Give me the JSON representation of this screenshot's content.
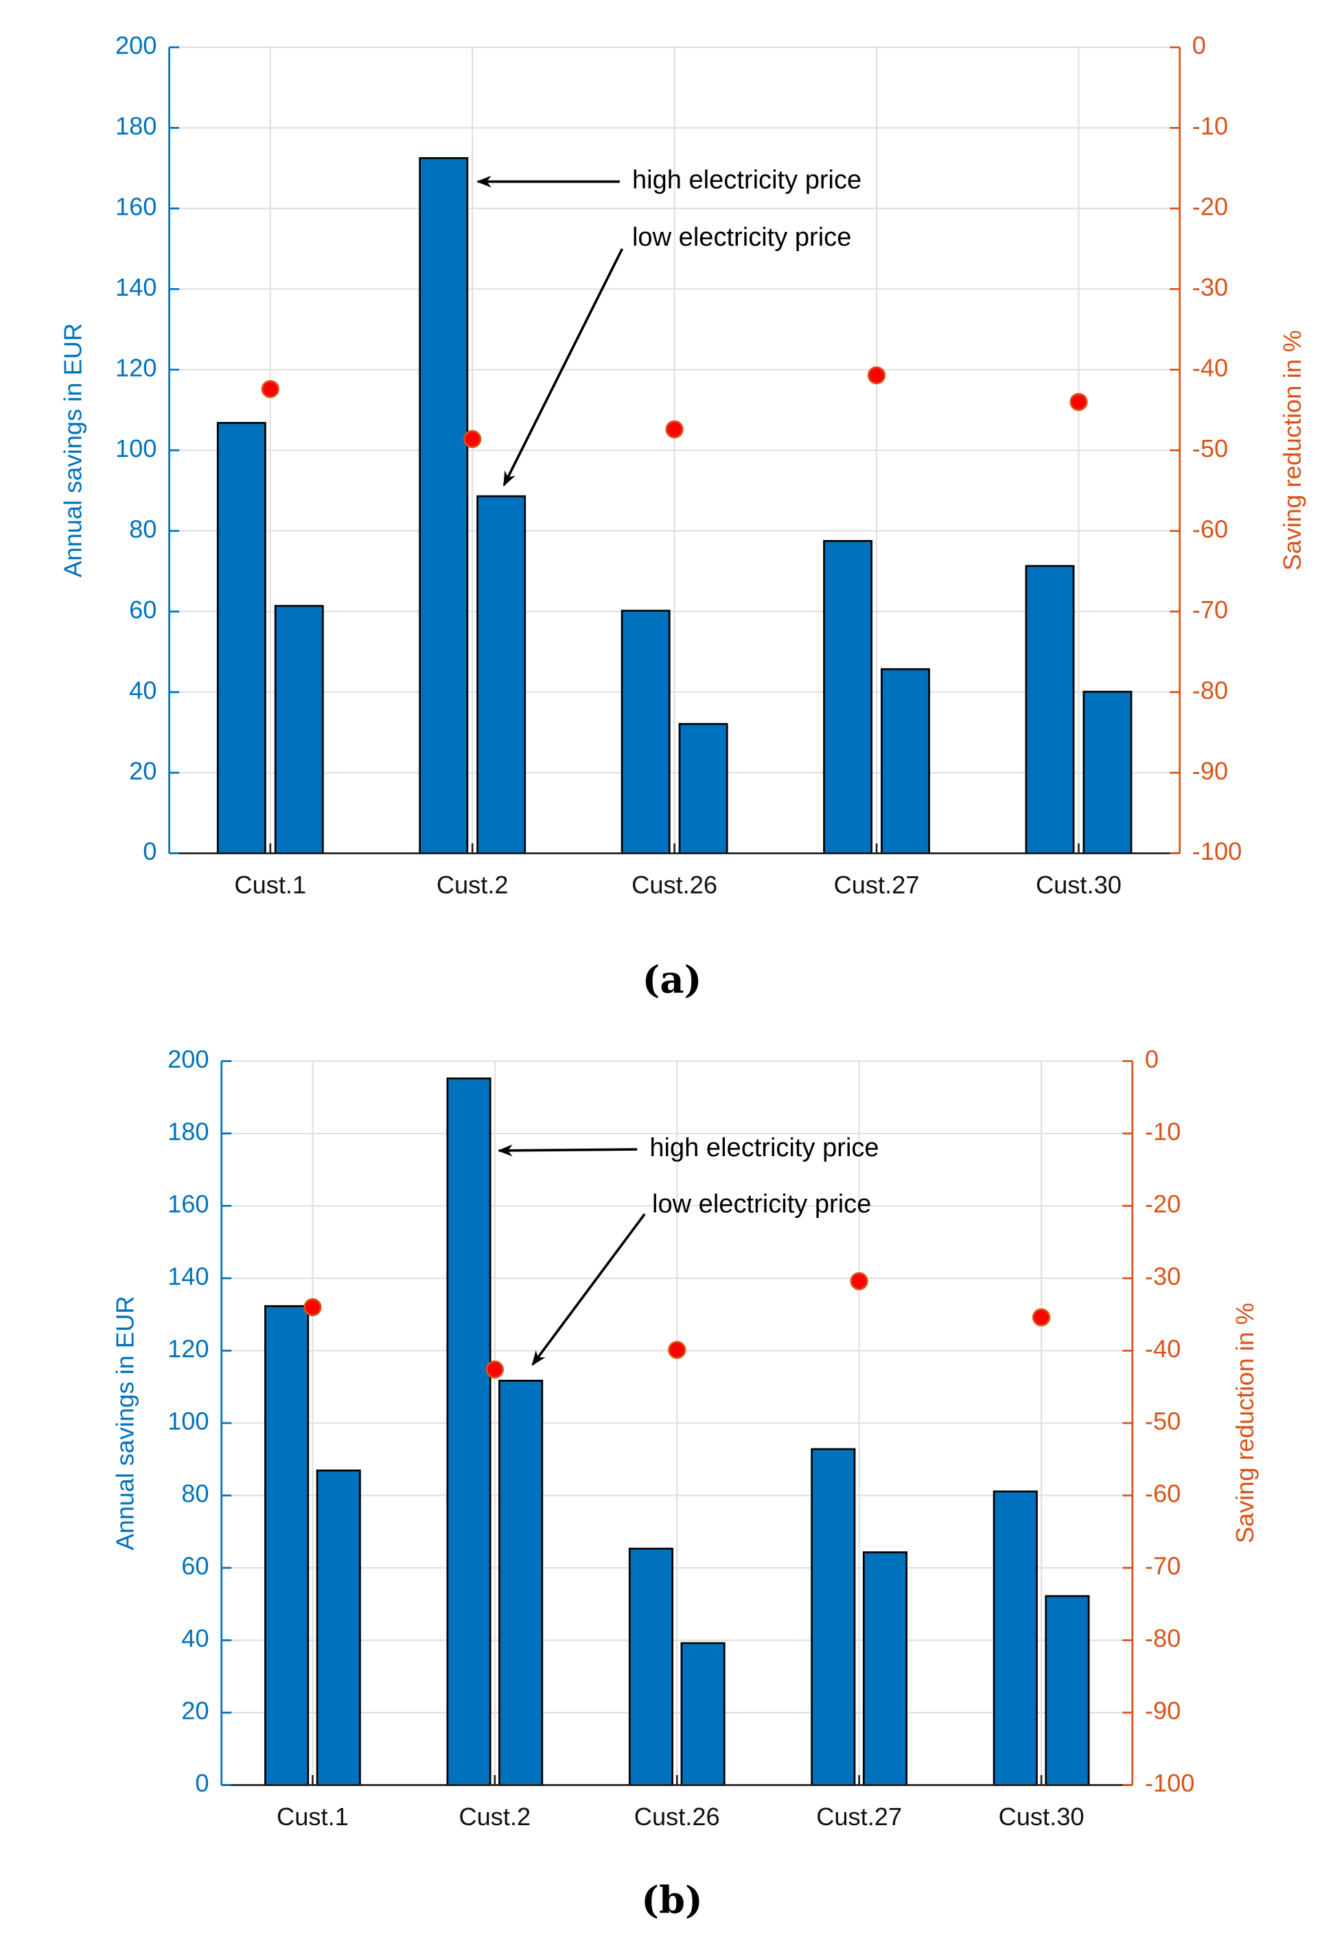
{
  "chart_data": [
    {
      "type": "bar",
      "caption": "(a)",
      "categories": [
        "Cust.1",
        "Cust.2",
        "Cust.26",
        "Cust.27",
        "Cust.30"
      ],
      "series": [
        {
          "color": "#0072bd",
          "values": [
            106.8,
            172.5,
            60.2,
            77.5,
            71.3
          ]
        },
        {
          "color": "#0072bd",
          "values": [
            61.4,
            88.6,
            32.1,
            45.7,
            40.1
          ]
        },
        {
          "type": "scatter",
          "axis": "y2",
          "color": "#ff0000",
          "values": [
            -42.4,
            -48.6,
            -47.4,
            -40.7,
            -44.0
          ]
        }
      ],
      "ylabel": "Annual savings in EUR",
      "y2label": "Saving reduction in %",
      "ylim": [
        0,
        200
      ],
      "yticks": [
        0,
        20,
        40,
        60,
        80,
        100,
        120,
        140,
        160,
        180,
        200
      ],
      "y2lim": [
        -100,
        0
      ],
      "y2ticks": [
        0,
        -10,
        -20,
        -30,
        -40,
        -50,
        -60,
        -70,
        -80,
        -90,
        -100
      ],
      "grid": true,
      "annotations": [
        "high electricity price",
        "low electricity price"
      ]
    },
    {
      "type": "bar",
      "caption": "(b)",
      "categories": [
        "Cust.1",
        "Cust.2",
        "Cust.26",
        "Cust.27",
        "Cust.30"
      ],
      "series": [
        {
          "color": "#0072bd",
          "values": [
            132.3,
            195.2,
            65.3,
            92.8,
            81.1
          ]
        },
        {
          "color": "#0072bd",
          "values": [
            86.9,
            111.7,
            39.2,
            64.3,
            52.2
          ]
        },
        {
          "type": "scatter",
          "axis": "y2",
          "color": "#ff0000",
          "values": [
            -34.0,
            -42.6,
            -39.9,
            -30.4,
            -35.4
          ]
        }
      ],
      "ylabel": "Annual savings in EUR",
      "y2label": "Saving reduction in %",
      "ylim": [
        0,
        200
      ],
      "yticks": [
        0,
        20,
        40,
        60,
        80,
        100,
        120,
        140,
        160,
        180,
        200
      ],
      "y2lim": [
        -100,
        0
      ],
      "y2ticks": [
        0,
        -10,
        -20,
        -30,
        -40,
        -50,
        -60,
        -70,
        -80,
        -90,
        -100
      ],
      "grid": true,
      "annotations": [
        "high electricity price",
        "low electricity price"
      ]
    }
  ]
}
